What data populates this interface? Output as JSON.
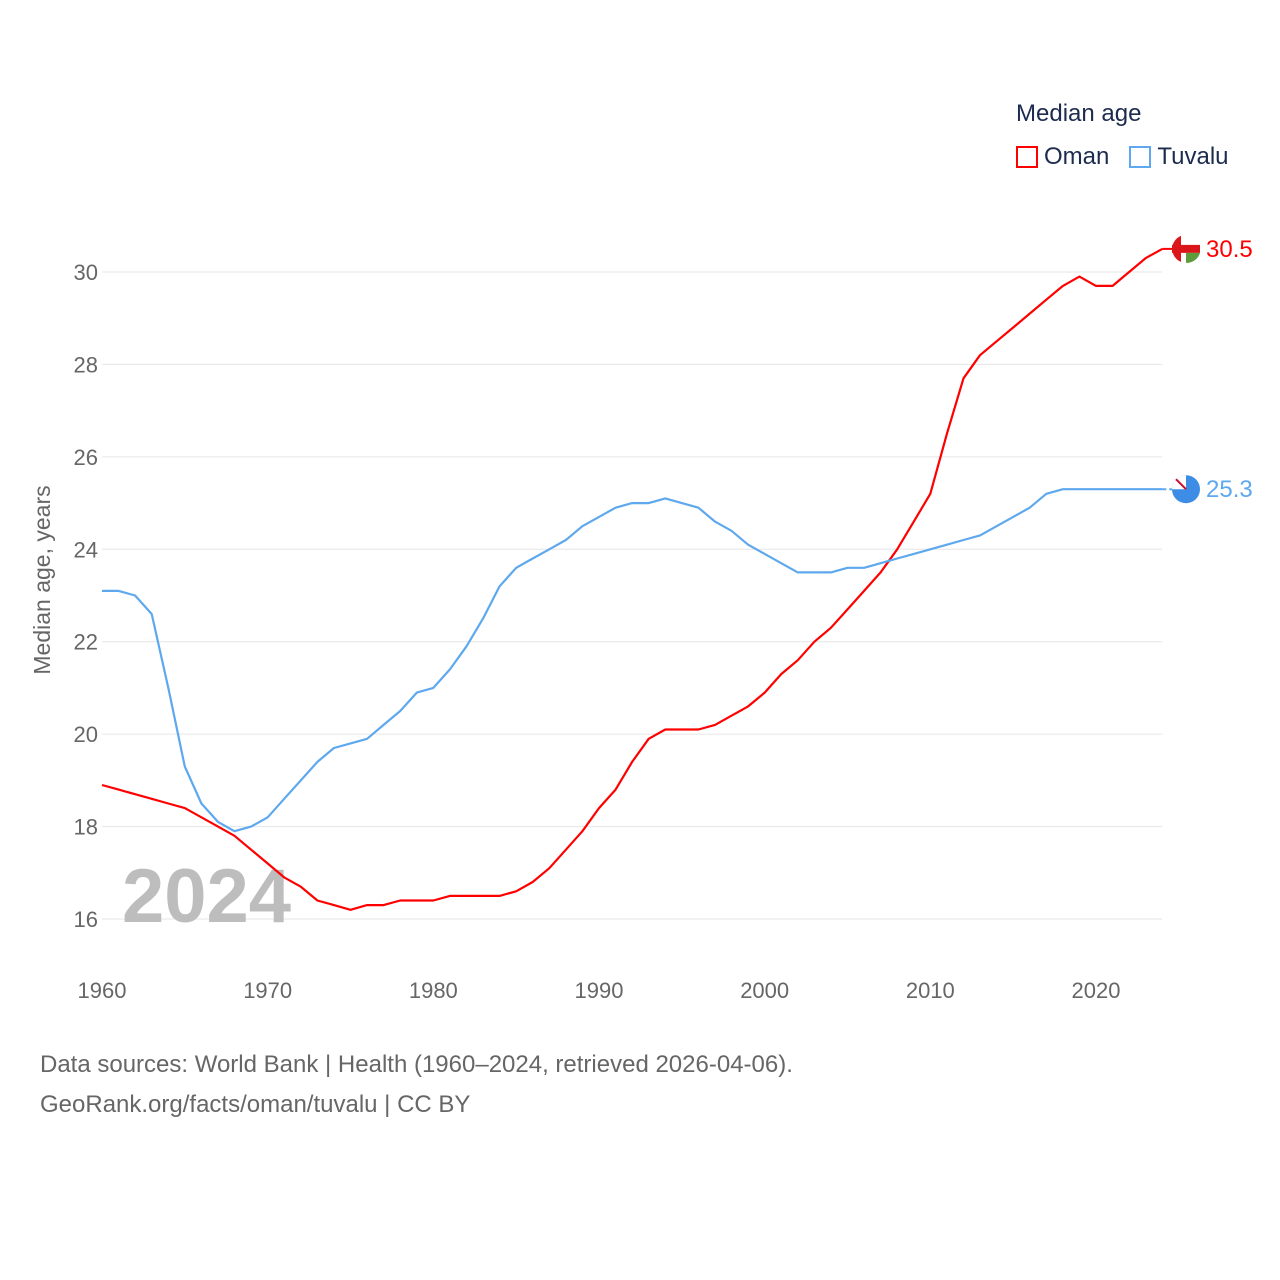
{
  "chart_data": {
    "type": "line",
    "title": "",
    "xlabel": "",
    "ylabel": "Median age, years",
    "xlim": [
      1960,
      2024
    ],
    "ylim": [
      15.3,
      31
    ],
    "yticks": [
      16,
      18,
      20,
      22,
      24,
      26,
      28,
      30
    ],
    "xticks": [
      1960,
      1970,
      1980,
      1990,
      2000,
      2010,
      2020
    ],
    "grid": true,
    "year_label": "2024",
    "legend": {
      "title": "Median age",
      "placement": "top-right"
    },
    "x": [
      1960,
      1961,
      1962,
      1963,
      1964,
      1965,
      1966,
      1967,
      1968,
      1969,
      1970,
      1971,
      1972,
      1973,
      1974,
      1975,
      1976,
      1977,
      1978,
      1979,
      1980,
      1981,
      1982,
      1983,
      1984,
      1985,
      1986,
      1987,
      1988,
      1989,
      1990,
      1991,
      1992,
      1993,
      1994,
      1995,
      1996,
      1997,
      1998,
      1999,
      2000,
      2001,
      2002,
      2003,
      2004,
      2005,
      2006,
      2007,
      2008,
      2009,
      2010,
      2011,
      2012,
      2013,
      2014,
      2015,
      2016,
      2017,
      2018,
      2019,
      2020,
      2021,
      2022,
      2023,
      2024
    ],
    "series": [
      {
        "name": "Oman",
        "color": "#ff0000",
        "end_label": "30.5",
        "values": [
          18.9,
          18.8,
          18.7,
          18.6,
          18.5,
          18.4,
          18.2,
          18.0,
          17.8,
          17.5,
          17.2,
          16.9,
          16.7,
          16.4,
          16.3,
          16.2,
          16.3,
          16.3,
          16.4,
          16.4,
          16.4,
          16.5,
          16.5,
          16.5,
          16.5,
          16.6,
          16.8,
          17.1,
          17.5,
          17.9,
          18.4,
          18.8,
          19.4,
          19.9,
          20.1,
          20.1,
          20.1,
          20.2,
          20.4,
          20.6,
          20.9,
          21.3,
          21.6,
          22.0,
          22.3,
          22.7,
          23.1,
          23.5,
          24.0,
          24.6,
          25.2,
          26.5,
          27.7,
          28.2,
          28.5,
          28.8,
          29.1,
          29.4,
          29.7,
          29.9,
          29.7,
          29.7,
          30.0,
          30.3,
          30.5
        ]
      },
      {
        "name": "Tuvalu",
        "color": "#5ea8ee",
        "end_label": "25.3",
        "values": [
          23.1,
          23.1,
          23.0,
          22.6,
          21.0,
          19.3,
          18.5,
          18.1,
          17.9,
          18.0,
          18.2,
          18.6,
          19.0,
          19.4,
          19.7,
          19.8,
          19.9,
          20.2,
          20.5,
          20.9,
          21.0,
          21.4,
          21.9,
          22.5,
          23.2,
          23.6,
          23.8,
          24.0,
          24.2,
          24.5,
          24.7,
          24.9,
          25.0,
          25.0,
          25.1,
          25.0,
          24.9,
          24.6,
          24.4,
          24.1,
          23.9,
          23.7,
          23.5,
          23.5,
          23.5,
          23.6,
          23.6,
          23.7,
          23.8,
          23.9,
          24.0,
          24.1,
          24.2,
          24.3,
          24.5,
          24.7,
          24.9,
          25.2,
          25.3,
          25.3,
          25.3,
          25.3,
          25.3,
          25.3,
          25.3
        ]
      }
    ]
  },
  "footer": {
    "line1": "Data sources: World Bank | Health (1960–2024, retrieved 2026-04-06).",
    "line2": "GeoRank.org/facts/oman/tuvalu | CC BY"
  }
}
